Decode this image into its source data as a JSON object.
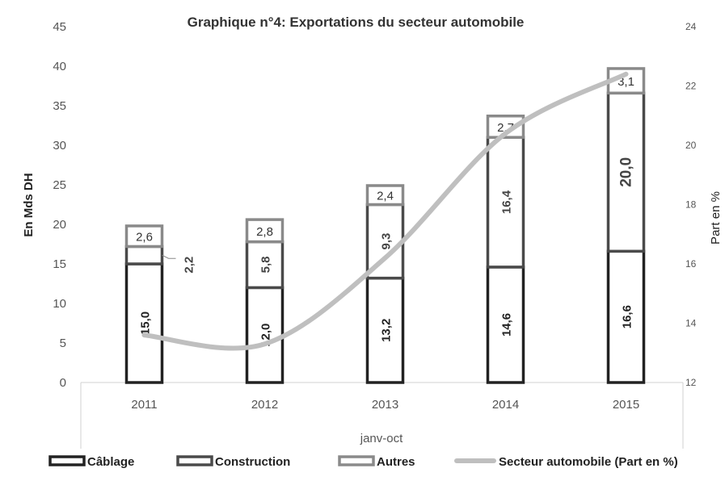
{
  "chart_data": {
    "type": "bar",
    "stacked": true,
    "title": "Graphique n°4: Exportations du secteur automobile",
    "ylabel": "En Mds DH",
    "y2label": "Part en %",
    "xlabel": "janv-oct",
    "categories": [
      "2011",
      "2012",
      "2013",
      "2014",
      "2015"
    ],
    "ylim": [
      0,
      45
    ],
    "yticks": [
      "0",
      "5",
      "10",
      "15",
      "20",
      "25",
      "30",
      "35",
      "40",
      "45"
    ],
    "y2lim": [
      12,
      24
    ],
    "y2ticks": [
      "12",
      "14",
      "16",
      "18",
      "20",
      "22",
      "24"
    ],
    "grid": false,
    "legend_position": "bottom",
    "series": [
      {
        "name": "Câblage",
        "values": [
          15.0,
          12.0,
          13.2,
          14.6,
          16.6
        ],
        "labels": [
          "15,0",
          "12,0",
          "13,2",
          "14,6",
          "16,6"
        ],
        "color": "#222222"
      },
      {
        "name": "Construction",
        "values": [
          2.2,
          5.8,
          9.3,
          16.4,
          20.0
        ],
        "labels": [
          "2,2",
          "5,8",
          "9,3",
          "16,4",
          "20,0"
        ],
        "color": "#4a4a4a"
      },
      {
        "name": "Autres",
        "values": [
          2.6,
          2.8,
          2.4,
          2.7,
          3.1
        ],
        "labels": [
          "2,6",
          "2,8",
          "2,4",
          "2,7",
          "3,1"
        ],
        "color": "#8a8a8a"
      }
    ],
    "line_series": {
      "name": "Secteur automobile (Part en %)",
      "axis": "right",
      "values": [
        13.6,
        13.3,
        16.2,
        20.4,
        22.4
      ],
      "color": "#bfbfbf"
    }
  }
}
